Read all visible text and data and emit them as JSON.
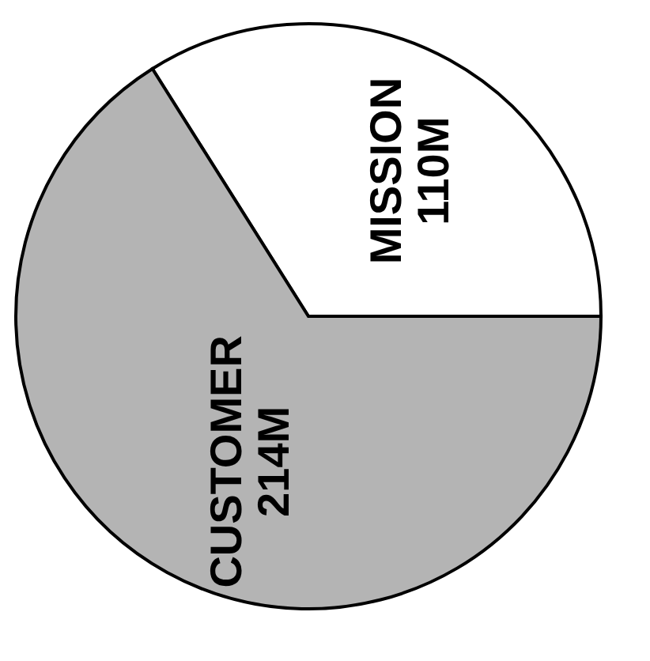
{
  "chart_data": {
    "type": "pie",
    "categories": [
      "MISSION",
      "CUSTOMER"
    ],
    "values": [
      110,
      214
    ],
    "colors": [
      "#ffffff",
      "#b4b4b4"
    ],
    "value_labels": [
      "110M",
      "214M"
    ],
    "legend": false
  }
}
